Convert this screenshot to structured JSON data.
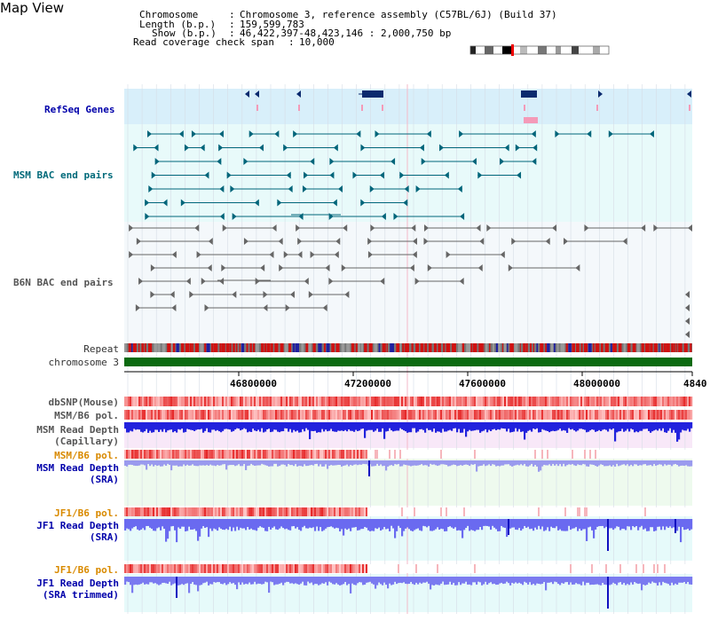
{
  "title": "Map View",
  "info": {
    "chromosome_key": "Chromosome",
    "chromosome_val": "Chromosome 3, reference assembly (C57BL/6J) (Build 37)",
    "length_key": "Length (b.p.)",
    "length_val": "159,599,783",
    "show_key": "Show (b.p.)",
    "show_val": "46,422,397-48,423,146 : 2,000,750 bp",
    "coverage_key": "Read coverage check span",
    "coverage_val": "10,000"
  },
  "tracks": {
    "refseq": "RefSeq Genes",
    "msm_bac": "MSM BAC end pairs",
    "b6n_bac": "B6N BAC end pairs",
    "repeat": "Repeat",
    "chromosome": "chromosome 3",
    "dbsnp": "dbSNP(Mouse)",
    "msm_pol": "MSM/B6 pol.",
    "msm_depth_cap_1": "MSM Read Depth",
    "msm_depth_cap_2": "(Capillary)",
    "msm_pol2": "MSM/B6 pol.",
    "msm_depth_sra_1": "MSM Read Depth",
    "msm_depth_sra_2": "(SRA)",
    "jf1_pol": "JF1/B6 pol.",
    "jf1_depth_1": "JF1 Read Depth",
    "jf1_depth_2": "(SRA)",
    "jf1_pol2": "JF1/B6 pol.",
    "jf1_trim_1": "JF1 Read Depth",
    "jf1_trim_2": "(SRA trimmed)"
  },
  "axis": {
    "ticks": [
      "46800000",
      "47200000",
      "47600000",
      "48000000",
      "4840"
    ]
  },
  "colors": {
    "refseq_bg": "#d8effa",
    "bac_bg": "#e8fafa",
    "gene": "#0b2a6e",
    "msm": "#00657a",
    "b6n": "#666666",
    "chrom": "#0b6a10",
    "repeat": "#d01010",
    "depth": "#3030ee"
  }
}
